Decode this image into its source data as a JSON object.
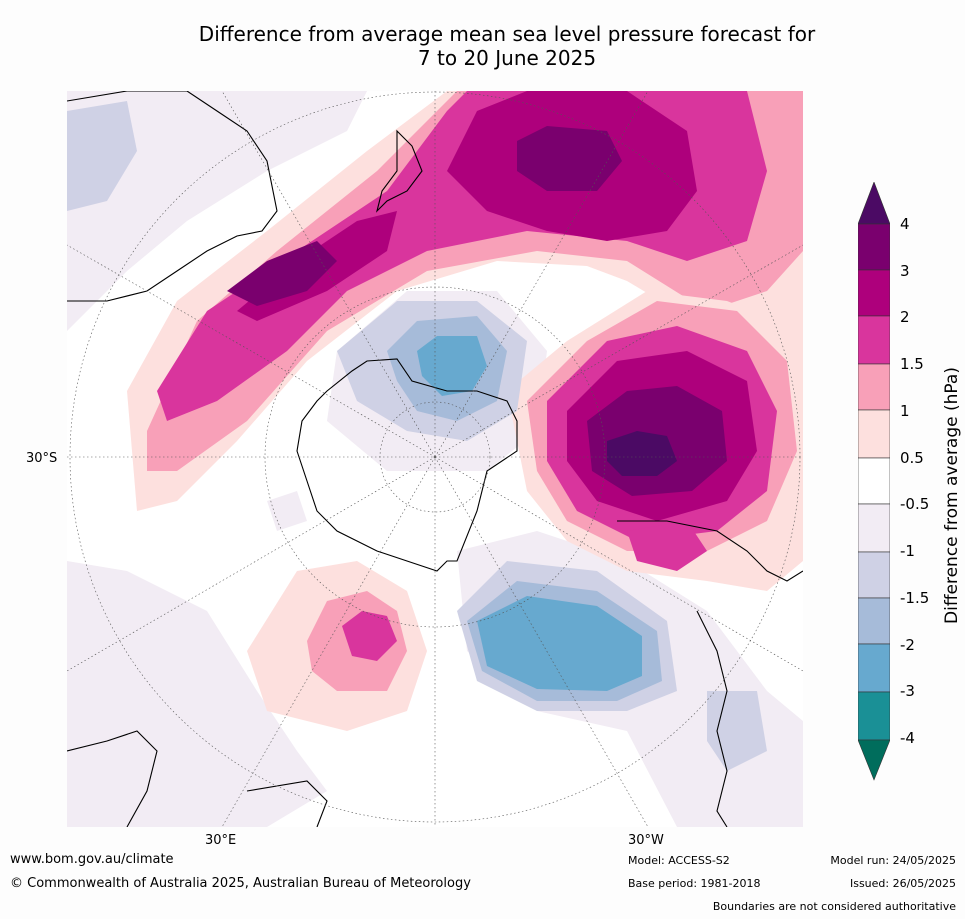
{
  "title": {
    "line1": "Difference from average mean sea level pressure forecast for",
    "line2": "7 to 20 June 2025"
  },
  "map": {
    "projection": "south polar stereographic",
    "tick_labels": {
      "left": "30°S",
      "bottom_left": "30°E",
      "bottom_right": "30°W"
    }
  },
  "colorbar": {
    "title": "Difference from average (hPa)",
    "bounds": [
      "4",
      "3",
      "2",
      "1.5",
      "1",
      "0.5",
      "-0.5",
      "-1",
      "-1.5",
      "-2",
      "-3",
      "-4"
    ],
    "colors": {
      "gt4": "#4b0a64",
      "3_4": "#7a006e",
      "2_3": "#ae007c",
      "1.5_2": "#d9359d",
      "1_1.5": "#f8a0b8",
      "0.5_1": "#fde0de",
      "neutral": "#ffffff",
      "m1_m0.5": "#f2ecf4",
      "m1.5_m1": "#cfd1e5",
      "m2_m1.5": "#a6bbd9",
      "m3_m2": "#67a9cf",
      "m4_m3": "#1a9096",
      "lt_m4": "#006d5c"
    }
  },
  "footer": {
    "url": "www.bom.gov.au/climate",
    "copyright": "© Commonwealth of Australia 2025, Australian Bureau of Meteorology",
    "model": "Model: ACCESS-S2",
    "base_period": "Base period: 1981-2018",
    "model_run": "Model run: 24/05/2025",
    "issued": "Issued: 26/05/2025",
    "disclaimer": "Boundaries are not considered authoritative"
  }
}
